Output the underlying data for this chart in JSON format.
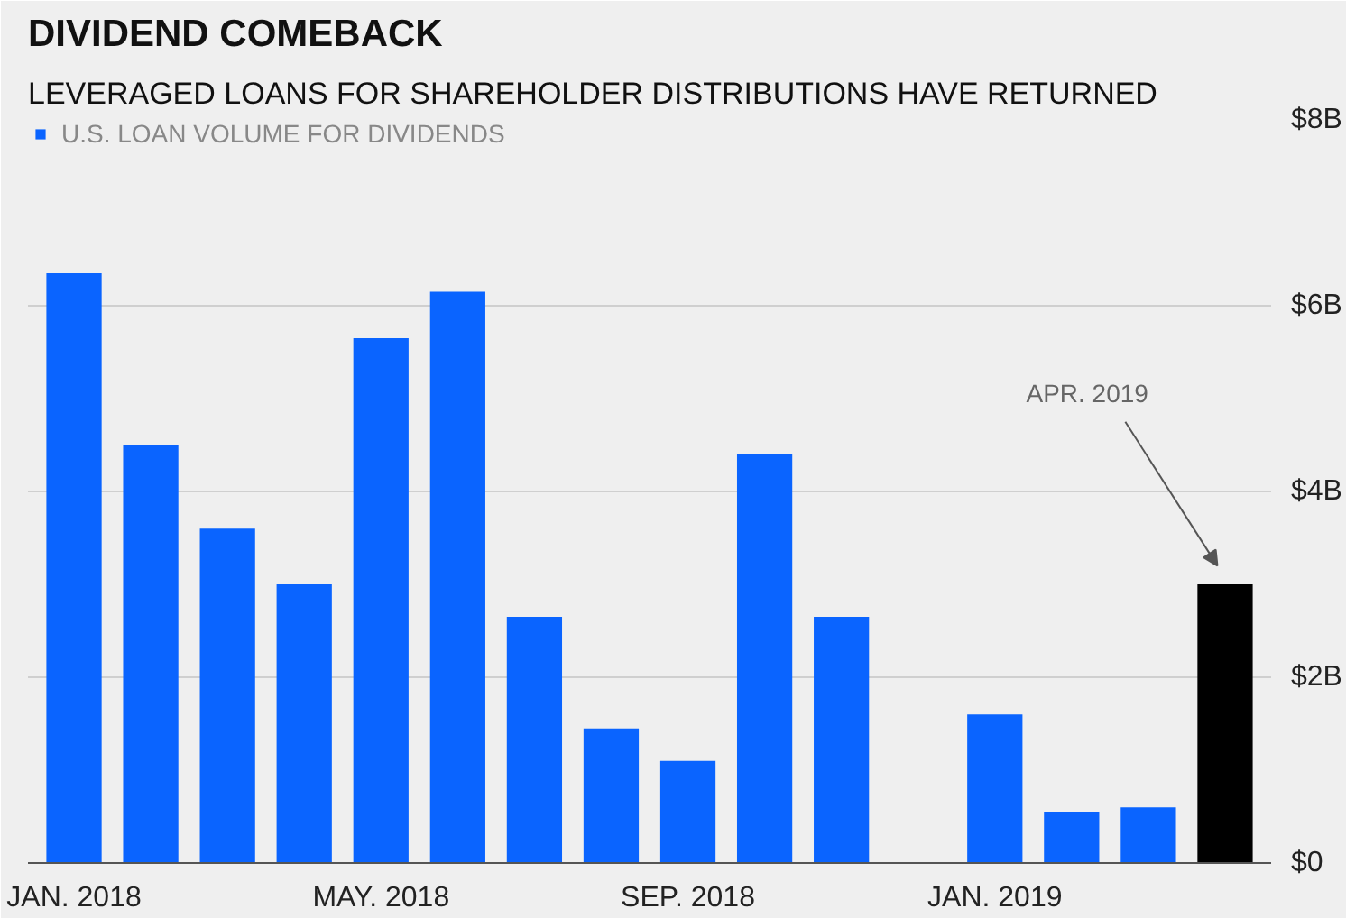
{
  "chart_data": {
    "type": "bar",
    "title": "DIVIDEND COMEBACK",
    "subtitle": "LEVERAGED LOANS FOR SHAREHOLDER DISTRIBUTIONS HAVE RETURNED",
    "categories": [
      "JAN. 2018",
      null,
      null,
      null,
      "MAY. 2018",
      null,
      null,
      null,
      "SEP. 2018",
      null,
      null,
      null,
      "JAN. 2019",
      null,
      null,
      null
    ],
    "series": [
      {
        "name": "U.S. LOAN VOLUME FOR DIVIDENDS",
        "color": "#0a64ff",
        "values": [
          6.35,
          4.5,
          3.6,
          3.0,
          5.65,
          6.15,
          2.65,
          1.45,
          1.1,
          4.4,
          2.65,
          null,
          1.6,
          0.55,
          0.6,
          3.0
        ],
        "colors": [
          "#0a64ff",
          "#0a64ff",
          "#0a64ff",
          "#0a64ff",
          "#0a64ff",
          "#0a64ff",
          "#0a64ff",
          "#0a64ff",
          "#0a64ff",
          "#0a64ff",
          "#0a64ff",
          "#0a64ff",
          "#0a64ff",
          "#0a64ff",
          "#0a64ff",
          "#000000"
        ]
      }
    ],
    "ylim": [
      0,
      8
    ],
    "yticks": [
      {
        "value": 0,
        "label": "$0"
      },
      {
        "value": 2,
        "label": "$2B"
      },
      {
        "value": 4,
        "label": "$4B"
      },
      {
        "value": 6,
        "label": "$6B"
      },
      {
        "value": 8,
        "label": "$8B"
      }
    ],
    "grid": "y",
    "legend": "top left",
    "annotations": [
      "APR. 2019"
    ]
  }
}
